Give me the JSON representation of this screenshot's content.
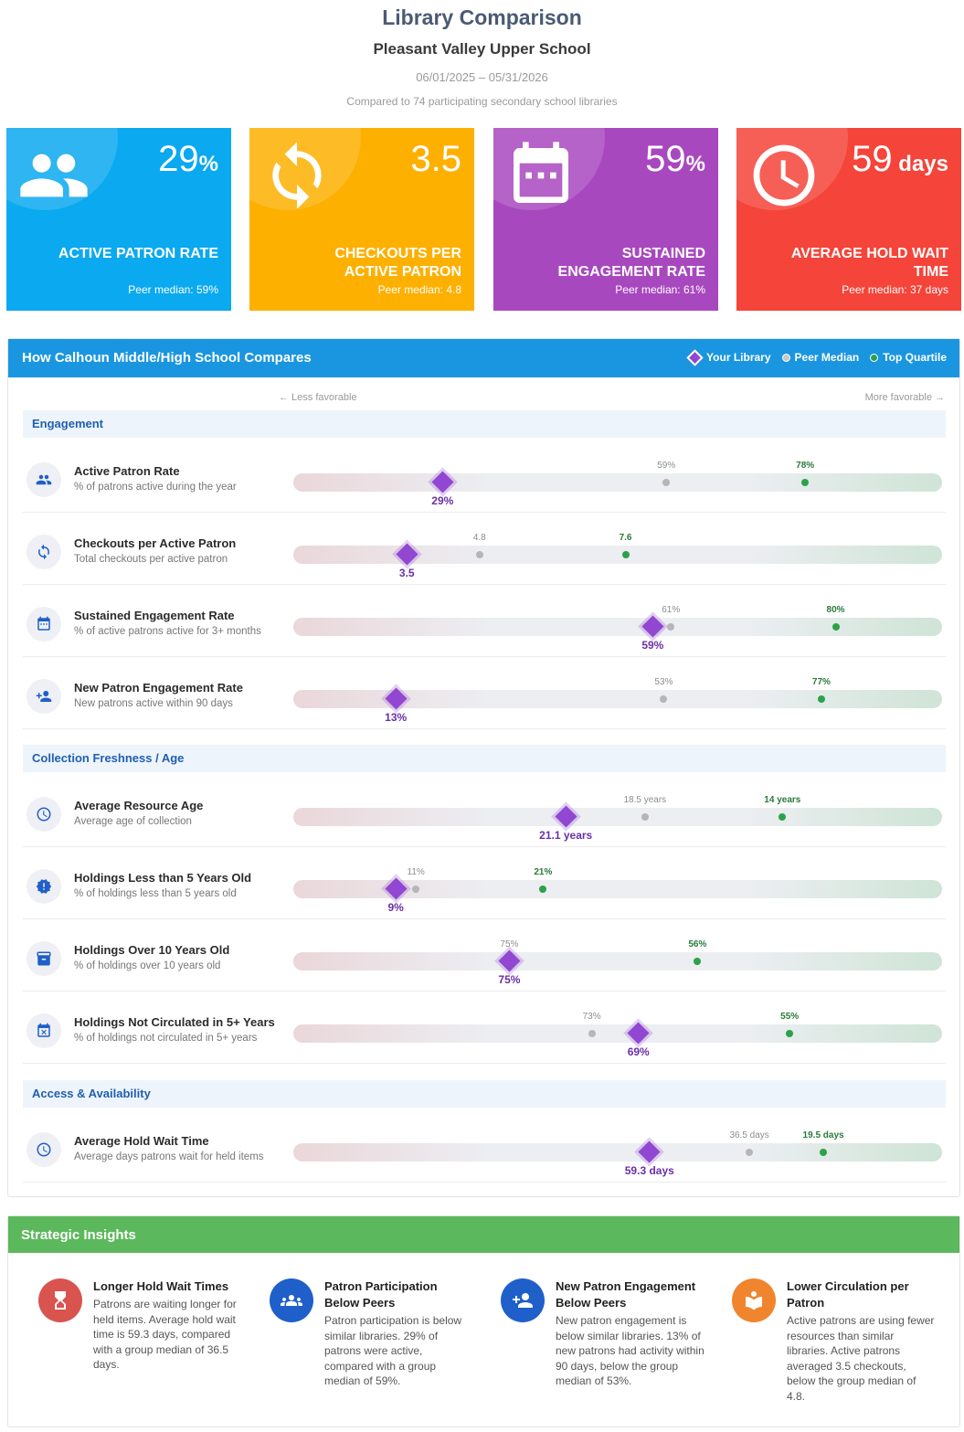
{
  "header": {
    "title": "Library Comparison",
    "school": "Pleasant Valley Upper School",
    "dates": "06/01/2025 – 05/31/2026",
    "compared": "Compared to 74 participating secondary school libraries"
  },
  "kpis": [
    {
      "value": "29",
      "unit": "%",
      "label": "ACTIVE PATRON RATE",
      "peer": "Peer median: 59%",
      "color": "#0aa9f0",
      "icon": "people-icon"
    },
    {
      "value": "3.5",
      "unit": "",
      "label": "CHECKOUTS PER ACTIVE PATRON",
      "peer": "Peer median: 4.8",
      "color": "#fdb000",
      "icon": "refresh-icon"
    },
    {
      "value": "59",
      "unit": "%",
      "label": "SUSTAINED ENGAGEMENT RATE",
      "peer": "Peer median: 61%",
      "color": "#a848bf",
      "icon": "calendar-icon"
    },
    {
      "value": "59",
      "unit": " days",
      "label": "AVERAGE HOLD WAIT TIME",
      "peer": "Peer median: 37 days",
      "color": "#f54439",
      "icon": "clock-icon"
    }
  ],
  "comparison": {
    "title": "How Calhoun Middle/High School Compares",
    "legend": {
      "you": "Your Library",
      "peer": "Peer Median",
      "top": "Top Quartile"
    },
    "less": "← Less favorable",
    "more": "More favorable →",
    "sections": [
      {
        "name": "Engagement",
        "rows": [
          {
            "name": "Active Patron Rate",
            "desc": "% of patrons active during the year",
            "icon": "people-icon",
            "you": 0.23,
            "you_label": "29%",
            "peer": 0.575,
            "peer_label": "59%",
            "top": 0.789,
            "top_label": "78%"
          },
          {
            "name": "Checkouts per Active Patron",
            "desc": "Total checkouts per active patron",
            "icon": "refresh-icon",
            "you": 0.175,
            "you_label": "3.5",
            "peer": 0.287,
            "peer_label": "4.8",
            "top": 0.512,
            "top_label": "7.6"
          },
          {
            "name": "Sustained Engagement Rate",
            "desc": "% of active patrons active for 3+ months",
            "icon": "calendar-icon",
            "you": 0.554,
            "you_label": "59%",
            "peer": 0.582,
            "peer_label": "61%",
            "top": 0.836,
            "top_label": "80%"
          },
          {
            "name": "New Patron Engagement Rate",
            "desc": "New patrons active within 90 days",
            "icon": "add-person-icon",
            "you": 0.158,
            "you_label": "13%",
            "peer": 0.571,
            "peer_label": "53%",
            "top": 0.814,
            "top_label": "77%"
          }
        ]
      },
      {
        "name": "Collection Freshness / Age",
        "rows": [
          {
            "name": "Average Resource Age",
            "desc": "Average age of collection",
            "icon": "clock-icon",
            "you": 0.42,
            "you_label": "21.1 years",
            "peer": 0.542,
            "peer_label": "18.5 years",
            "top": 0.754,
            "top_label": "14 years"
          },
          {
            "name": "Holdings Less than 5 Years Old",
            "desc": "% of holdings less than 5 years old",
            "icon": "alert-badge-icon",
            "you": 0.158,
            "you_label": "9%",
            "peer": 0.189,
            "peer_label": "11%",
            "top": 0.385,
            "top_label": "21%"
          },
          {
            "name": "Holdings Over 10 Years Old",
            "desc": "% of holdings over 10 years old",
            "icon": "archive-icon",
            "you": 0.333,
            "you_label": "75%",
            "peer": 0.333,
            "peer_label": "75%",
            "top": 0.623,
            "top_label": "56%"
          },
          {
            "name": "Holdings Not Circulated in 5+ Years",
            "desc": "% of holdings not circulated in 5+ years",
            "icon": "calendar-x-icon",
            "you": 0.532,
            "you_label": "69%",
            "peer": 0.46,
            "peer_label": "73%",
            "top": 0.765,
            "top_label": "55%"
          }
        ]
      },
      {
        "name": "Access & Availability",
        "rows": [
          {
            "name": "Average Hold Wait Time",
            "desc": "Average days patrons wait for held items",
            "icon": "clock-icon",
            "you": 0.549,
            "you_label": "59.3 days",
            "peer": 0.703,
            "peer_label": "36.5 days",
            "top": 0.817,
            "top_label": "19.5 days"
          }
        ]
      }
    ]
  },
  "insights": {
    "title": "Strategic Insights",
    "items": [
      {
        "title": "Longer Hold Wait Times",
        "body": "Patrons are waiting longer for held items. Average hold wait time is 59.3 days, compared with a group median of 36.5 days.",
        "color": "#d9534f",
        "icon": "hourglass-icon"
      },
      {
        "title": "Patron Participation Below Peers",
        "body": "Patron participation is below similar libraries. 29% of patrons were active, compared with a group median of 59%.",
        "color": "#1f5fc9",
        "icon": "group-icon"
      },
      {
        "title": "New Patron Engagement Below Peers",
        "body": "New patron engagement is below similar libraries. 13% of new patrons had activity within 90 days, below the group median of 53%.",
        "color": "#1f5fc9",
        "icon": "add-person-icon"
      },
      {
        "title": "Lower Circulation per Patron",
        "body": "Active patrons are using fewer resources than similar libraries. Active patrons averaged 3.5 checkouts, below the group median of 4.8.",
        "color": "#f0852d",
        "icon": "book-reader-icon"
      }
    ]
  }
}
